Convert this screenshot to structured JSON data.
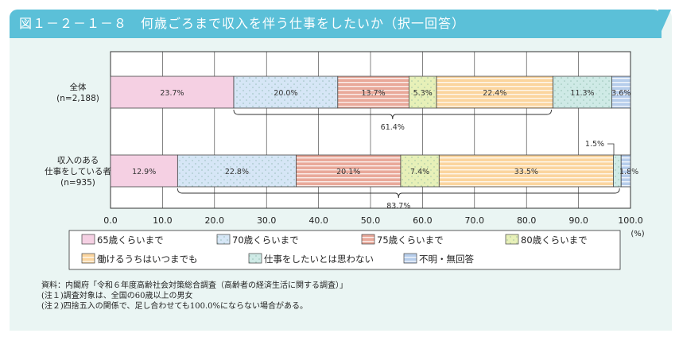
{
  "title": "図１－２－１－８　何歳ごろまで収入を伴う仕事をしたいか（択一回答）",
  "chart_data": {
    "type": "bar",
    "orientation": "horizontal-stacked",
    "categories": [
      "全体\n(n=2,188)",
      "収入のある\n仕事をしている者\n(n=935)"
    ],
    "series": [
      {
        "name": "65歳くらいまで",
        "values": [
          23.7,
          12.9
        ],
        "color": "#f5d0e3",
        "pattern": "solid"
      },
      {
        "name": "70歳くらいまで",
        "values": [
          20.0,
          22.8
        ],
        "color": "#d6e6f6",
        "pattern": "dots"
      },
      {
        "name": "75歳くらいまで",
        "values": [
          13.7,
          20.1
        ],
        "color": "#e9a99a",
        "pattern": "stripes"
      },
      {
        "name": "80歳くらいまで",
        "values": [
          5.3,
          7.4
        ],
        "color": "#e7f0b8",
        "pattern": "dots"
      },
      {
        "name": "働けるうちはいつまでも",
        "values": [
          22.4,
          33.5
        ],
        "color": "#fbd59e",
        "pattern": "stripes"
      },
      {
        "name": "仕事をしたいとは思わない",
        "values": [
          11.3,
          1.5
        ],
        "color": "#cfeae6",
        "pattern": "dots"
      },
      {
        "name": "不明・無回答",
        "values": [
          3.6,
          1.8
        ],
        "color": "#b6cdeb",
        "pattern": "stripes"
      }
    ],
    "data_labels": [
      [
        "23.7%",
        "20.0%",
        "13.7%",
        "5.3%",
        "22.4%",
        "11.3%",
        "3.6%"
      ],
      [
        "12.9%",
        "22.8%",
        "20.1%",
        "7.4%",
        "33.5%",
        "1.5%",
        "1.8%"
      ]
    ],
    "brackets": [
      "61.4%",
      "83.7%"
    ],
    "xlim": [
      0,
      100
    ],
    "xticks": [
      "0.0",
      "10.0",
      "20.0",
      "30.0",
      "40.0",
      "50.0",
      "60.0",
      "70.0",
      "80.0",
      "90.0",
      "100.0"
    ],
    "xunit": "(%)",
    "grid": true,
    "legend": "bottom"
  },
  "notes": [
    "資料：内閣府「令和６年度高齢社会対策総合調査（高齢者の経済生活に関する調査）」",
    "(注１)調査対象は、全国の60歳以上の男女",
    "(注２)四捨五入の関係で、足し合わせても100.0%にならない場合がある。"
  ]
}
